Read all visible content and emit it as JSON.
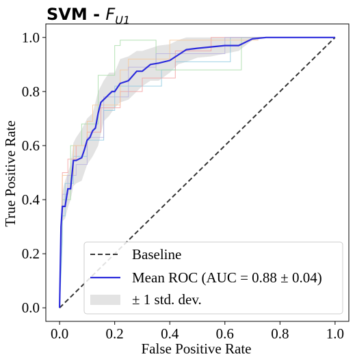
{
  "chart_data": {
    "type": "line",
    "title_prefix": "SVM - ",
    "title_math_main": "F",
    "title_math_sub": "U1",
    "xlabel": "False Positive Rate",
    "ylabel": "True Positive Rate",
    "xlim": [
      -0.05,
      1.05
    ],
    "ylim": [
      -0.05,
      1.05
    ],
    "xticks": [
      0.0,
      0.2,
      0.4,
      0.6,
      0.8,
      1.0
    ],
    "yticks": [
      0.0,
      0.2,
      0.4,
      0.6,
      0.8,
      1.0
    ],
    "xtick_labels": [
      "0.0",
      "0.2",
      "0.4",
      "0.6",
      "0.8",
      "1.0"
    ],
    "ytick_labels": [
      "0.0",
      "0.2",
      "0.4",
      "0.6",
      "0.8",
      "1.0"
    ],
    "grid": false,
    "legend_position": "lower right",
    "legend": {
      "baseline": "Baseline",
      "mean": "Mean ROC (AUC = 0.88 ± 0.04)",
      "band": "± 1 std. dev."
    },
    "colors": {
      "baseline": "#333333",
      "mean": "#2b2bdc",
      "band": "#d9d9d9",
      "folds": [
        "#8ecae0",
        "#f2a0a0",
        "#a7dca7",
        "#f6c89a",
        "#b8b2de"
      ]
    },
    "baseline": {
      "x": [
        0,
        1
      ],
      "y": [
        0,
        1
      ]
    },
    "mean_roc": {
      "x": [
        0.0,
        0.005,
        0.01,
        0.02,
        0.03,
        0.04,
        0.05,
        0.06,
        0.07,
        0.08,
        0.09,
        0.1,
        0.11,
        0.12,
        0.13,
        0.14,
        0.15,
        0.16,
        0.17,
        0.18,
        0.19,
        0.2,
        0.22,
        0.25,
        0.28,
        0.3,
        0.33,
        0.36,
        0.4,
        0.43,
        0.46,
        0.5,
        0.55,
        0.6,
        0.65,
        0.7,
        0.75,
        0.8,
        0.9,
        1.0
      ],
      "y": [
        0.0,
        0.3,
        0.375,
        0.375,
        0.44,
        0.44,
        0.545,
        0.545,
        0.55,
        0.555,
        0.585,
        0.62,
        0.63,
        0.655,
        0.665,
        0.72,
        0.76,
        0.77,
        0.78,
        0.79,
        0.8,
        0.8,
        0.83,
        0.84,
        0.875,
        0.875,
        0.9,
        0.905,
        0.915,
        0.935,
        0.955,
        0.96,
        0.965,
        0.97,
        0.97,
        0.995,
        1.0,
        1.0,
        1.0,
        1.0
      ]
    },
    "std_band": {
      "x": [
        0.0,
        0.01,
        0.02,
        0.03,
        0.04,
        0.05,
        0.06,
        0.08,
        0.1,
        0.12,
        0.14,
        0.16,
        0.18,
        0.2,
        0.22,
        0.25,
        0.28,
        0.3,
        0.33,
        0.36,
        0.4,
        0.43,
        0.46,
        0.5,
        0.55,
        0.6,
        0.65,
        0.7,
        0.75,
        1.0
      ],
      "upper": [
        0.0,
        0.43,
        0.47,
        0.5,
        0.53,
        0.61,
        0.63,
        0.66,
        0.7,
        0.72,
        0.8,
        0.84,
        0.87,
        0.87,
        0.92,
        0.93,
        0.95,
        0.95,
        0.96,
        0.97,
        0.975,
        0.99,
        1.0,
        1.0,
        1.0,
        1.0,
        1.0,
        1.0,
        1.0,
        1.0
      ],
      "lower": [
        0.0,
        0.32,
        0.33,
        0.37,
        0.4,
        0.45,
        0.46,
        0.47,
        0.53,
        0.56,
        0.6,
        0.69,
        0.71,
        0.74,
        0.76,
        0.77,
        0.8,
        0.82,
        0.84,
        0.84,
        0.87,
        0.9,
        0.91,
        0.925,
        0.93,
        0.94,
        0.95,
        0.99,
        1.0,
        1.0
      ]
    },
    "folds": [
      {
        "x": [
          0,
          0.01,
          0.01,
          0.02,
          0.02,
          0.05,
          0.05,
          0.1,
          0.1,
          0.16,
          0.16,
          0.2,
          0.2,
          0.37,
          0.37,
          0.42,
          0.42,
          0.62,
          0.62,
          1.0
        ],
        "y": [
          0,
          0.25,
          0.34,
          0.34,
          0.46,
          0.46,
          0.56,
          0.56,
          0.62,
          0.62,
          0.73,
          0.73,
          0.82,
          0.82,
          0.88,
          0.88,
          0.91,
          0.91,
          1.0,
          1.0
        ]
      },
      {
        "x": [
          0,
          0.01,
          0.01,
          0.03,
          0.03,
          0.06,
          0.06,
          0.1,
          0.1,
          0.15,
          0.15,
          0.22,
          0.22,
          0.3,
          0.3,
          0.42,
          0.42,
          0.55,
          0.55,
          1.0
        ],
        "y": [
          0,
          0.45,
          0.5,
          0.5,
          0.55,
          0.55,
          0.6,
          0.6,
          0.65,
          0.65,
          0.74,
          0.74,
          0.8,
          0.8,
          0.85,
          0.85,
          0.95,
          0.95,
          1.0,
          1.0
        ]
      },
      {
        "x": [
          0,
          0.01,
          0.01,
          0.04,
          0.04,
          0.08,
          0.08,
          0.14,
          0.14,
          0.2,
          0.2,
          0.22,
          0.22,
          0.35,
          0.35,
          0.66,
          0.66,
          1.0
        ],
        "y": [
          0,
          0.34,
          0.4,
          0.4,
          0.6,
          0.6,
          0.68,
          0.68,
          0.86,
          0.86,
          0.97,
          0.97,
          0.99,
          0.99,
          0.88,
          0.88,
          1.0,
          1.0
        ]
      },
      {
        "x": [
          0,
          0.01,
          0.01,
          0.05,
          0.05,
          0.1,
          0.1,
          0.12,
          0.12,
          0.22,
          0.22,
          0.25,
          0.25,
          0.4,
          0.4,
          0.72,
          0.72,
          1.0
        ],
        "y": [
          0,
          0.49,
          0.49,
          0.49,
          0.6,
          0.6,
          0.69,
          0.69,
          0.75,
          0.75,
          0.88,
          0.88,
          0.92,
          0.92,
          0.99,
          0.99,
          1.0,
          1.0
        ]
      },
      {
        "x": [
          0,
          0.01,
          0.01,
          0.03,
          0.03,
          0.06,
          0.06,
          0.1,
          0.1,
          0.16,
          0.16,
          0.25,
          0.25,
          0.35,
          0.35,
          0.6,
          0.6,
          1.0
        ],
        "y": [
          0,
          0.38,
          0.42,
          0.42,
          0.49,
          0.49,
          0.53,
          0.53,
          0.63,
          0.63,
          0.78,
          0.78,
          0.89,
          0.89,
          0.94,
          0.94,
          1.0,
          1.0
        ]
      }
    ]
  }
}
